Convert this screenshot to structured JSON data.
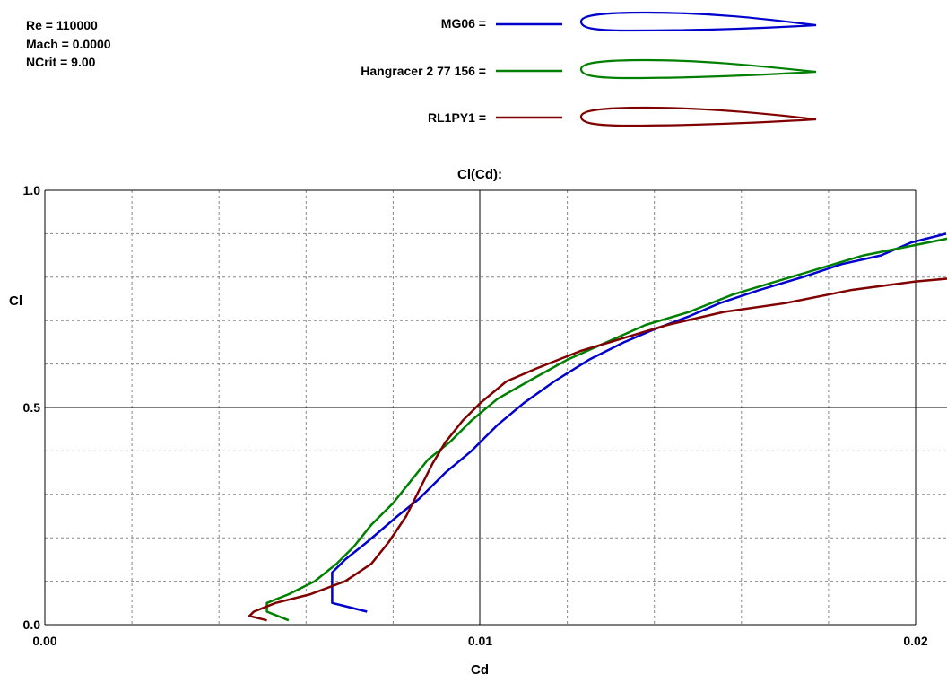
{
  "info": {
    "re": "Re = 110000",
    "mach": "Mach = 0.0000",
    "ncrit": "NCrit = 9.00"
  },
  "legend": [
    {
      "label": "MG06 =",
      "color": "#0000cc"
    },
    {
      "label": "Hangracer 2 77 156 =",
      "color": "#008000"
    },
    {
      "label": "RL1PY1 =",
      "color": "#800000"
    }
  ],
  "chart_data": {
    "type": "line",
    "title": "Cl(Cd):",
    "xlabel": "Cd",
    "ylabel": "Cl",
    "xlim": [
      0.0,
      0.02
    ],
    "ylim": [
      0.0,
      1.0
    ],
    "x_ticks": [
      "0.00",
      "0.01",
      "0.02"
    ],
    "y_ticks": [
      "0.0",
      "0.5",
      "1.0"
    ],
    "grid": true,
    "series": [
      {
        "name": "MG06",
        "color": "#0000cc",
        "points": [
          [
            0.0074,
            0.03
          ],
          [
            0.0066,
            0.05
          ],
          [
            0.0066,
            0.12
          ],
          [
            0.0069,
            0.15
          ],
          [
            0.0074,
            0.19
          ],
          [
            0.0081,
            0.25
          ],
          [
            0.0086,
            0.29
          ],
          [
            0.0092,
            0.35
          ],
          [
            0.0098,
            0.4
          ],
          [
            0.0104,
            0.46
          ],
          [
            0.011,
            0.51
          ],
          [
            0.0117,
            0.56
          ],
          [
            0.0125,
            0.61
          ],
          [
            0.0133,
            0.65
          ],
          [
            0.014,
            0.68
          ],
          [
            0.0148,
            0.71
          ],
          [
            0.0155,
            0.74
          ],
          [
            0.0164,
            0.77
          ],
          [
            0.0174,
            0.8
          ],
          [
            0.0183,
            0.83
          ],
          [
            0.0192,
            0.85
          ],
          [
            0.0199,
            0.88
          ],
          [
            0.0207,
            0.9
          ]
        ]
      },
      {
        "name": "Hangracer 2 77 156",
        "color": "#008000",
        "points": [
          [
            0.0056,
            0.01
          ],
          [
            0.0051,
            0.03
          ],
          [
            0.0051,
            0.05
          ],
          [
            0.0056,
            0.07
          ],
          [
            0.0062,
            0.1
          ],
          [
            0.0067,
            0.14
          ],
          [
            0.0071,
            0.18
          ],
          [
            0.0075,
            0.23
          ],
          [
            0.008,
            0.28
          ],
          [
            0.0084,
            0.33
          ],
          [
            0.0088,
            0.38
          ],
          [
            0.0093,
            0.42
          ],
          [
            0.0098,
            0.47
          ],
          [
            0.0104,
            0.52
          ],
          [
            0.0111,
            0.56
          ],
          [
            0.012,
            0.61
          ],
          [
            0.0129,
            0.65
          ],
          [
            0.0138,
            0.69
          ],
          [
            0.0148,
            0.72
          ],
          [
            0.0158,
            0.76
          ],
          [
            0.0168,
            0.79
          ],
          [
            0.0178,
            0.82
          ],
          [
            0.0188,
            0.85
          ],
          [
            0.0198,
            0.87
          ],
          [
            0.0208,
            0.89
          ]
        ]
      },
      {
        "name": "RL1PY1",
        "color": "#800000",
        "points": [
          [
            0.0051,
            0.01
          ],
          [
            0.0047,
            0.02
          ],
          [
            0.0048,
            0.03
          ],
          [
            0.0053,
            0.05
          ],
          [
            0.0061,
            0.07
          ],
          [
            0.0069,
            0.1
          ],
          [
            0.0075,
            0.14
          ],
          [
            0.0079,
            0.19
          ],
          [
            0.0083,
            0.25
          ],
          [
            0.0086,
            0.31
          ],
          [
            0.0089,
            0.37
          ],
          [
            0.0092,
            0.42
          ],
          [
            0.0096,
            0.47
          ],
          [
            0.01,
            0.51
          ],
          [
            0.0106,
            0.56
          ],
          [
            0.0113,
            0.59
          ],
          [
            0.0123,
            0.63
          ],
          [
            0.0133,
            0.66
          ],
          [
            0.0143,
            0.69
          ],
          [
            0.0156,
            0.72
          ],
          [
            0.017,
            0.74
          ],
          [
            0.0185,
            0.77
          ],
          [
            0.02,
            0.79
          ],
          [
            0.0211,
            0.8
          ]
        ]
      }
    ]
  }
}
